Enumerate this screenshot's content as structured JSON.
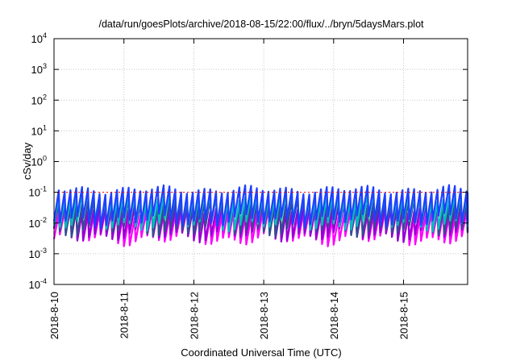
{
  "chart_data": {
    "type": "line",
    "title": "/data/run/goesPlots/archive/2018-08-15/22:00/flux/../bryn/5daysMars.plot",
    "xlabel": "Coordinated Universal Time (UTC)",
    "ylabel": "cSv/day",
    "yscale": "log",
    "ylim": [
      0.0001,
      10000
    ],
    "xlim": [
      "2018-08-10T00:00",
      "2018-08-15T22:00"
    ],
    "grid": true,
    "y_ticks": [
      {
        "value": 0.0001,
        "base": "10",
        "exp": "-4"
      },
      {
        "value": 0.001,
        "base": "10",
        "exp": "-3"
      },
      {
        "value": 0.01,
        "base": "10",
        "exp": "-2"
      },
      {
        "value": 0.1,
        "base": "10",
        "exp": "-1"
      },
      {
        "value": 1,
        "base": "10",
        "exp": "0"
      },
      {
        "value": 10,
        "base": "10",
        "exp": "1"
      },
      {
        "value": 100,
        "base": "10",
        "exp": "2"
      },
      {
        "value": 1000,
        "base": "10",
        "exp": "3"
      },
      {
        "value": 10000,
        "base": "10",
        "exp": "4"
      }
    ],
    "x_ticks": [
      "2018-8-10",
      "2018-8-11",
      "2018-8-12",
      "2018-8-13",
      "2018-8-14",
      "2018-8-15"
    ],
    "threshold_value": 0.1,
    "cycle_hours": 2,
    "series": [
      {
        "color": "#ff00ff",
        "lower": 0.003,
        "upper": 0.02
      },
      {
        "color": "#9400d3",
        "lower": 0.004,
        "upper": 0.03
      },
      {
        "color": "#2f4f8f",
        "lower": 0.006,
        "upper": 0.05
      },
      {
        "color": "#00bfbf",
        "lower": 0.009,
        "upper": 0.07
      },
      {
        "color": "#1f3fff",
        "lower": 0.012,
        "upper": 0.12
      }
    ],
    "colors": {
      "threshold": "#ff0000",
      "grid": "#c8c8c8",
      "axis": "#000000"
    }
  }
}
